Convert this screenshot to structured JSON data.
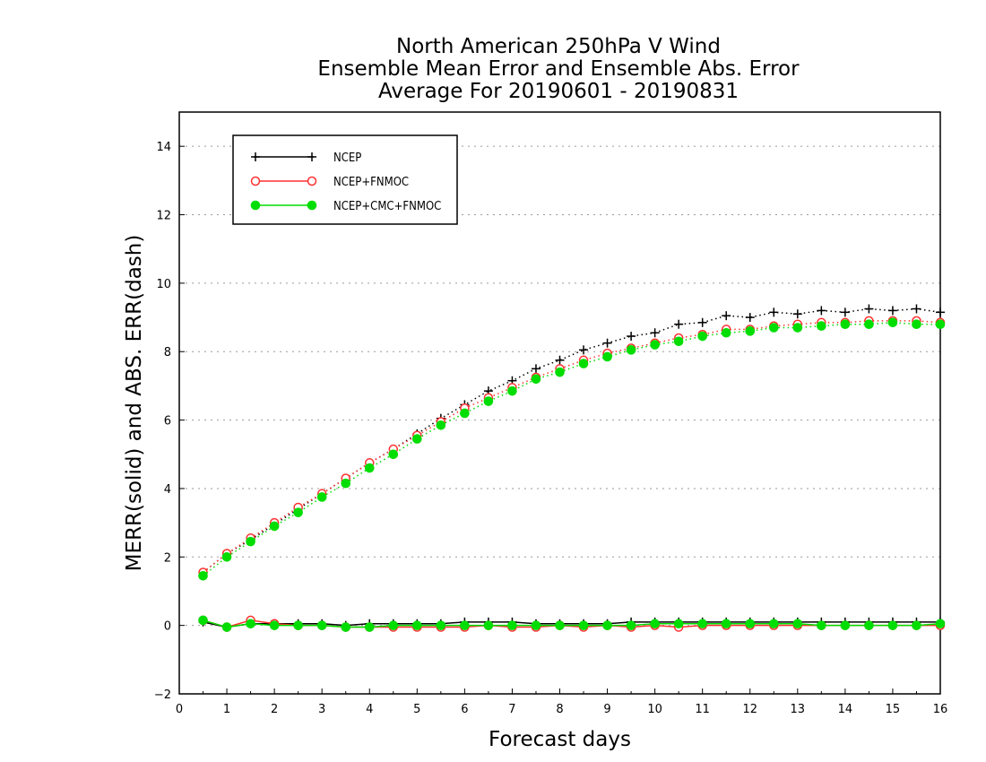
{
  "chart_data": {
    "type": "line",
    "title": [
      "North American 250hPa V Wind",
      "Ensemble Mean Error and Ensemble Abs. Error",
      "Average For 20190601 - 20190831"
    ],
    "xlabel": "Forecast days",
    "ylabel": "MERR(solid) and ABS. ERR(dash)",
    "xlim": [
      0,
      16
    ],
    "ylim": [
      -2,
      15
    ],
    "xticks": [
      "0",
      "1",
      "2",
      "3",
      "4",
      "5",
      "6",
      "7",
      "8",
      "9",
      "10",
      "11",
      "12",
      "13",
      "14",
      "15",
      "16"
    ],
    "yticks": [
      "-2",
      "0",
      "2",
      "4",
      "6",
      "8",
      "10",
      "12",
      "14"
    ],
    "grid": "horizontal dotted",
    "legend_position": "top-left",
    "x": [
      0.5,
      1,
      1.5,
      2,
      2.5,
      3,
      3.5,
      4,
      4.5,
      5,
      5.5,
      6,
      6.5,
      7,
      7.5,
      8,
      8.5,
      9,
      9.5,
      10,
      10.5,
      11,
      11.5,
      12,
      12.5,
      13,
      13.5,
      14,
      14.5,
      15,
      15.5,
      16
    ],
    "series": [
      {
        "name": "NCEP",
        "color": "#000000",
        "marker": "plus",
        "abs_err": [
          1.55,
          2.1,
          2.5,
          2.95,
          3.4,
          3.85,
          4.3,
          4.75,
          5.15,
          5.6,
          6.05,
          6.45,
          6.85,
          7.15,
          7.5,
          7.75,
          8.05,
          8.25,
          8.45,
          8.55,
          8.8,
          8.85,
          9.05,
          9.0,
          9.15,
          9.1,
          9.2,
          9.15,
          9.25,
          9.2,
          9.25,
          9.15
        ],
        "mean_err": [
          0.1,
          -0.05,
          0.05,
          0.05,
          0.05,
          0.05,
          0.0,
          0.05,
          0.05,
          0.05,
          0.05,
          0.1,
          0.1,
          0.1,
          0.05,
          0.05,
          0.05,
          0.05,
          0.1,
          0.1,
          0.1,
          0.1,
          0.1,
          0.1,
          0.1,
          0.1,
          0.1,
          0.1,
          0.1,
          0.1,
          0.1,
          0.1
        ]
      },
      {
        "name": "NCEP+FNMOC",
        "color": "#ff3030",
        "marker": "open-circle",
        "abs_err": [
          1.55,
          2.1,
          2.55,
          3.0,
          3.45,
          3.85,
          4.3,
          4.75,
          5.15,
          5.55,
          5.95,
          6.35,
          6.65,
          6.95,
          7.25,
          7.5,
          7.75,
          7.95,
          8.1,
          8.25,
          8.4,
          8.5,
          8.65,
          8.65,
          8.75,
          8.8,
          8.85,
          8.85,
          8.9,
          8.9,
          8.9,
          8.85
        ],
        "mean_err": [
          0.15,
          -0.05,
          0.15,
          0.05,
          0.0,
          0.0,
          -0.05,
          -0.05,
          -0.05,
          -0.05,
          -0.05,
          -0.05,
          0.0,
          -0.05,
          -0.05,
          0.0,
          -0.05,
          0.0,
          -0.05,
          0.0,
          -0.05,
          0.0,
          0.0,
          0.0,
          0.0,
          0.0,
          0.0,
          0.0,
          0.0,
          0.0,
          0.0,
          0.0
        ]
      },
      {
        "name": "NCEP+CMC+FNMOC",
        "color": "#00dd00",
        "marker": "filled-circle",
        "abs_err": [
          1.45,
          2.0,
          2.45,
          2.9,
          3.3,
          3.75,
          4.15,
          4.6,
          5.0,
          5.45,
          5.85,
          6.2,
          6.55,
          6.85,
          7.2,
          7.4,
          7.65,
          7.85,
          8.05,
          8.2,
          8.3,
          8.45,
          8.55,
          8.6,
          8.7,
          8.7,
          8.75,
          8.8,
          8.8,
          8.85,
          8.8,
          8.8
        ],
        "mean_err": [
          0.15,
          -0.05,
          0.05,
          0.0,
          0.0,
          0.0,
          -0.05,
          -0.05,
          0.0,
          0.0,
          0.0,
          0.0,
          0.0,
          0.0,
          0.0,
          0.0,
          0.0,
          0.0,
          0.0,
          0.05,
          0.05,
          0.05,
          0.05,
          0.05,
          0.05,
          0.05,
          0.0,
          0.0,
          0.0,
          0.0,
          0.0,
          0.05
        ]
      }
    ]
  }
}
